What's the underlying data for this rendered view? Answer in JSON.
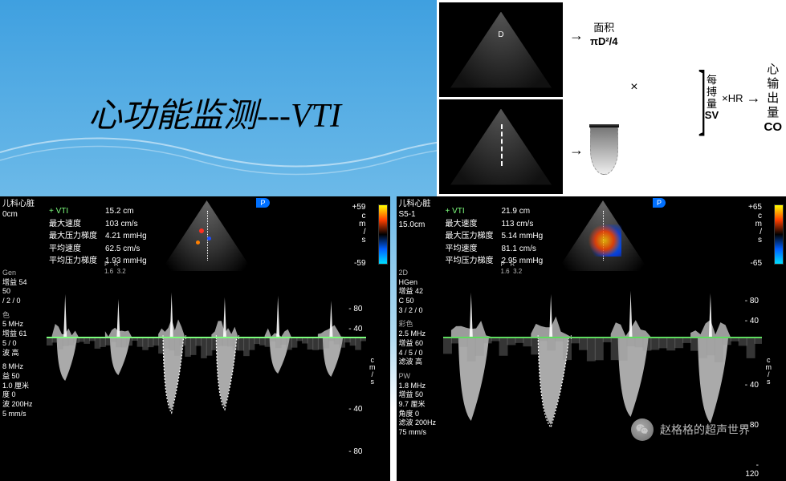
{
  "title": "心功能监测---VTI",
  "bg": {
    "gradient_top": "#3fa0e0",
    "gradient_mid": "#6bb9e8",
    "gradient_low": "#b0daf0",
    "gradient_bottom": "#ffffff"
  },
  "formula": {
    "area_label": "面积",
    "area_formula": "πD²/4",
    "mult": "×",
    "sv_label1": "每",
    "sv_label2": "搏",
    "sv_label3": "量",
    "sv_abbr": "SV",
    "hr": "×HR",
    "co_l1": "心",
    "co_l2": "输",
    "co_l3": "出",
    "co_l4": "量",
    "co_abbr": "CO",
    "d_label": "D",
    "arrow": "→"
  },
  "left_panel": {
    "probe_line1": "儿科心脏",
    "probe_line2": "",
    "depth": "0cm",
    "measurements": {
      "vti_label": "+ VTI",
      "vti_val": "15.2 cm",
      "vmax_label": "最大速度",
      "vmax_val": "103 cm/s",
      "pgmax_label": "最大压力梯度",
      "pgmax_val": "4.21 mmHg",
      "vmean_label": "平均速度",
      "vmean_val": "62.5 cm/s",
      "pgmean_label": "平均压力梯度",
      "pgmean_val": "1.93 mmHg"
    },
    "pr": "P   R\n1.6  3.2",
    "vel_top": "+59",
    "vel_bot": "-59",
    "vel_unit": "c\nm\n/\ns",
    "side": {
      "gen_hdr": "Gen",
      "gen_l1": "增益 54",
      "gen_l2": "50",
      "gen_l3": "/ 2 / 0",
      "color_hdr": "色",
      "color_l1": "5 MHz",
      "color_l2": "增益 61",
      "color_l3": "5 / 0",
      "color_l4": "波 高",
      "pw_hdr": "",
      "pw_l1": "8 MHz",
      "pw_l2": "益 50",
      "pw_l3": "1.0 厘米",
      "pw_l4": "度 0",
      "pw_l5": "波 200Hz",
      "pw_l6": "5 mm/s"
    },
    "y_scale": {
      "top1": "80",
      "top2": "40",
      "zero": "",
      "bot1": "40",
      "bot2": "80",
      "unit": "cm/s"
    },
    "scale_pos": {
      "top1": 14,
      "top2": 24,
      "bot1": 64,
      "bot2": 85
    },
    "baseline_color": "#7cff7c",
    "spectrum": {
      "beats": 6,
      "up_heights": [
        28,
        22,
        30,
        24,
        26,
        20
      ],
      "down_heights": [
        55,
        48,
        92,
        88,
        46,
        50
      ],
      "trace_beats": [
        2,
        3
      ],
      "colors": {
        "wave": "#cfcfcf",
        "trace": "#ffffff"
      }
    },
    "p_badge": "P"
  },
  "right_panel": {
    "probe_line1": "儿科心脏",
    "probe_line2": "S5-1",
    "depth": "15.0cm",
    "measurements": {
      "vti_label": "+ VTI",
      "vti_val": "21.9 cm",
      "vmax_label": "最大速度",
      "vmax_val": "113 cm/s",
      "pgmax_label": "最大压力梯度",
      "pgmax_val": "5.14 mmHg",
      "vmean_label": "平均速度",
      "vmean_val": "81.1 cm/s",
      "pgmean_label": "平均压力梯度",
      "pgmean_val": "2.95 mmHg"
    },
    "pr": "P   R\n1.6  3.2",
    "vel_top": "+65",
    "vel_bot": "-65",
    "vel_unit": "c\nm\n/\ns",
    "side": {
      "d2_hdr": "2D",
      "d2_l1": "HGen",
      "d2_l2": "增益 42",
      "d2_l3": "C 50",
      "d2_l4": "3 / 2 / 0",
      "color_hdr": "彩色",
      "color_l1": "2.5 MHz",
      "color_l2": "增益 60",
      "color_l3": "4 / 5 / 0",
      "color_l4": "滤波 高",
      "pw_hdr": "PW",
      "pw_l1": "1.8 MHz",
      "pw_l2": "增益 50",
      "pw_l3": "9.7 厘米",
      "pw_l4": "角度 0",
      "pw_l5": "滤波 200Hz",
      "pw_l6": "75 mm/s"
    },
    "y_scale": {
      "top1": "80",
      "top2": "40",
      "zero": "",
      "bot1": "40",
      "bot2": "80",
      "bot3": "120",
      "unit": "cm/s"
    },
    "scale_pos": {
      "top1": 10,
      "top2": 20,
      "bot1": 52,
      "bot2": 72,
      "bot3": 92
    },
    "baseline_color": "#5fdc5f",
    "spectrum": {
      "beats": 4,
      "up_heights": [
        30,
        28,
        32,
        29
      ],
      "down_heights": [
        105,
        110,
        100,
        108
      ],
      "trace_beats": [
        1
      ],
      "colors": {
        "wave": "#d0d0d0",
        "trace": "#ffffff"
      }
    },
    "p_badge": "P"
  },
  "watermark": "赵格格的超声世界",
  "colors": {
    "panel_bg": "#000000",
    "text_green": "#7dff7d",
    "text_white": "#ffffff"
  }
}
